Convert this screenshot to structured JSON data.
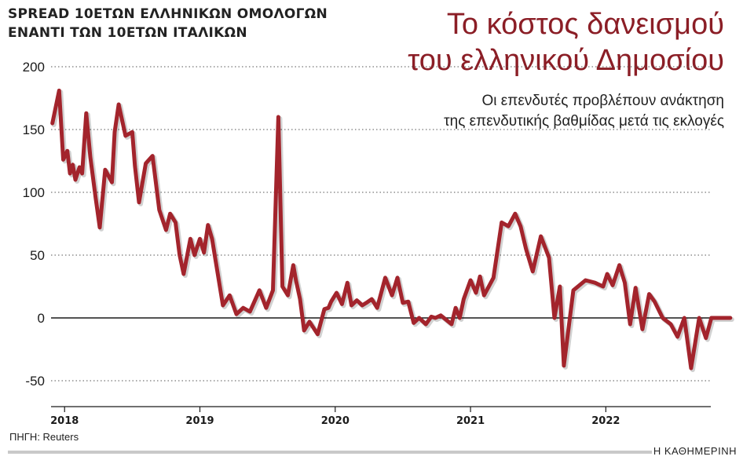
{
  "header": {
    "subtitle_line1": "SPREAD 10ΕΤΩΝ ΕΛΛΗΝΙΚΩΝ ΟΜΟΛΟΓΩΝ",
    "subtitle_line2": "ΕΝΑΝΤΙ ΤΩΝ 10ΕΤΩΝ ΙΤΑΛΙΚΩΝ",
    "title_line1": "Το κόστος δανεισμού",
    "title_line2": "του ελληνικού Δημοσίου",
    "deck_line1": "Οι επενδυτές προβλέπουν ανάκτηση",
    "deck_line2": "της επενδυτικής βαθμίδας μετά τις εκλογές"
  },
  "footer": {
    "source": "ΠΗΓΗ: Reuters",
    "brand": "Η ΚΑΘΗΜΕΡΙΝΗ"
  },
  "chart_data": {
    "type": "line",
    "title": "",
    "xlabel": "",
    "ylabel": "",
    "ylim": [
      -50,
      200
    ],
    "xlim": [
      2017.9,
      2022.95
    ],
    "y_ticks": [
      200,
      150,
      100,
      50,
      0,
      -50
    ],
    "y_tick_labels": [
      "200",
      "150",
      "100",
      "50",
      "0",
      "-50"
    ],
    "x_ticks": [
      2018,
      2019,
      2020,
      2021,
      2022
    ],
    "x_tick_labels": [
      "2018",
      "2019",
      "2020",
      "2021",
      "2022"
    ],
    "grid": "horizontal dotted",
    "line_color": "#a3242c",
    "series": [
      {
        "x": [
          2017.91,
          2017.96,
          2017.99,
          2018.02,
          2018.04,
          2018.06,
          2018.08,
          2018.11,
          2018.13,
          2018.16,
          2018.19,
          2018.23,
          2018.26,
          2018.3,
          2018.35,
          2018.37,
          2018.4,
          2018.45,
          2018.5,
          2018.52,
          2018.55,
          2018.6,
          2018.65,
          2018.7,
          2018.75,
          2018.78,
          2018.82,
          2018.85,
          2018.88,
          2018.93,
          2018.96,
          2019.0,
          2019.03,
          2019.06,
          2019.09,
          2019.12,
          2019.17,
          2019.22,
          2019.27,
          2019.32,
          2019.37,
          2019.44,
          2019.49,
          2019.54,
          2019.58,
          2019.61,
          2019.65,
          2019.69,
          2019.71,
          2019.74,
          2019.77,
          2019.81,
          2019.87,
          2019.92,
          2019.95,
          2019.97,
          2020.01,
          2020.05,
          2020.09,
          2020.12,
          2020.16,
          2020.2,
          2020.23,
          2020.27,
          2020.31,
          2020.37,
          2020.42,
          2020.46,
          2020.5,
          2020.54,
          2020.58,
          2020.62,
          2020.67,
          2020.71,
          2020.74,
          2020.78,
          2020.86,
          2020.89,
          2020.92,
          2020.95,
          2021.0,
          2021.04,
          2021.07,
          2021.1,
          2021.17,
          2021.23,
          2021.28,
          2021.33,
          2021.37,
          2021.41,
          2021.46,
          2021.52,
          2021.58,
          2021.62,
          2021.66,
          2021.69,
          2021.76,
          2021.85,
          2021.92,
          2021.98,
          2022.01,
          2022.05,
          2022.1,
          2022.14,
          2022.18,
          2022.22,
          2022.27,
          2022.32,
          2022.36,
          2022.42,
          2022.48,
          2022.53,
          2022.58,
          2022.63,
          2022.69,
          2022.74,
          2022.78,
          2022.81,
          2022.84,
          2022.89,
          2022.92
        ],
        "y": [
          155,
          181,
          126,
          133,
          115,
          122,
          110,
          120,
          115,
          163,
          128,
          95,
          72,
          118,
          108,
          148,
          170,
          145,
          148,
          121,
          92,
          123,
          129,
          86,
          70,
          83,
          76,
          50,
          35,
          63,
          50,
          63,
          52,
          74,
          63,
          43,
          10,
          18,
          3,
          8,
          5,
          22,
          8,
          22,
          160,
          25,
          18,
          42,
          30,
          15,
          -10,
          -3,
          -13,
          7,
          8,
          13,
          20,
          11,
          28,
          10,
          14,
          10,
          12,
          15,
          8,
          32,
          18,
          32,
          12,
          13,
          -4,
          0,
          -5,
          1,
          0,
          2,
          -5,
          8,
          0,
          15,
          30,
          20,
          33,
          18,
          32,
          76,
          73,
          83,
          73,
          55,
          37,
          65,
          48,
          0,
          25,
          -38,
          22,
          30,
          28,
          25,
          35,
          26,
          42,
          28,
          -5,
          24,
          -9,
          19,
          13,
          0,
          -5,
          -15,
          0,
          -40,
          0,
          -16,
          0,
          0,
          0,
          0,
          0
        ],
        "name": ""
      }
    ]
  }
}
